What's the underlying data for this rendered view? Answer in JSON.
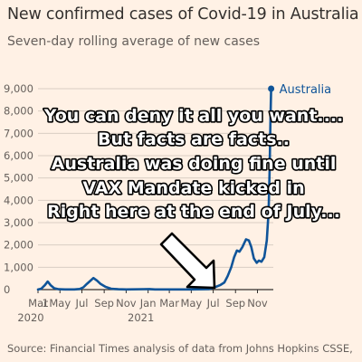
{
  "title": "New confirmed cases of Covid-19 in Australia",
  "subtitle": "Seven-day rolling average of new cases",
  "source": "Source: Financial Times analysis of data from Johns Hopkins CSSE,",
  "overlay": {
    "lines": [
      "You can deny it all you want....",
      "But facts are facts..",
      "Australia was doing fine until",
      "VAX Mandate kicked in",
      "Right here at the end of July..."
    ],
    "arrow": "arrow-pointing-down-right",
    "text_color": "#ffffff",
    "outline_color": "#000000"
  },
  "chart_data": {
    "type": "line",
    "xlim": [
      "2020-03-01",
      "2021-12-10"
    ],
    "ylim": [
      0,
      9000
    ],
    "y_ticks": [
      0,
      1000,
      2000,
      3000,
      4000,
      5000,
      6000,
      7000,
      8000,
      9000
    ],
    "y_tick_labels": [
      "0",
      "1,000",
      "2,000",
      "3,000",
      "4,000",
      "5,000",
      "6,000",
      "7,000",
      "8,000",
      "9,000"
    ],
    "x_ticks": [
      {
        "date": "2020-03-01",
        "label": "Mar",
        "year": "2020"
      },
      {
        "date": "2020-05-01",
        "label": "May"
      },
      {
        "date": "2020-07-01",
        "label": "Jul"
      },
      {
        "date": "2020-09-01",
        "label": "Sep"
      },
      {
        "date": "2020-11-01",
        "label": "Nov"
      },
      {
        "date": "2021-01-01",
        "label": "Jan",
        "year": "2021"
      },
      {
        "date": "2021-03-01",
        "label": "Mar"
      },
      {
        "date": "2021-05-01",
        "label": "May"
      },
      {
        "date": "2021-07-01",
        "label": "Jul"
      },
      {
        "date": "2021-09-01",
        "label": "Sep"
      },
      {
        "date": "2021-11-01",
        "label": "Nov"
      }
    ],
    "extra_x_label": {
      "date": "2020-04-01",
      "label": "1"
    },
    "grid": true,
    "legend_position": "top-right",
    "colors": {
      "line": "#0f5499",
      "grid": "#d9cdc3",
      "text": "#66605c"
    },
    "series": [
      {
        "name": "Australia",
        "x": [
          "2020-03-01",
          "2020-03-10",
          "2020-03-20",
          "2020-03-28",
          "2020-04-05",
          "2020-04-15",
          "2020-04-28",
          "2020-05-15",
          "2020-06-10",
          "2020-06-25",
          "2020-07-05",
          "2020-07-15",
          "2020-07-25",
          "2020-08-02",
          "2020-08-12",
          "2020-08-22",
          "2020-09-05",
          "2020-09-20",
          "2020-10-10",
          "2020-11-01",
          "2020-12-20",
          "2021-01-05",
          "2021-01-20",
          "2021-03-01",
          "2021-05-01",
          "2021-06-20",
          "2021-07-05",
          "2021-07-20",
          "2021-08-01",
          "2021-08-10",
          "2021-08-20",
          "2021-08-28",
          "2021-09-05",
          "2021-09-12",
          "2021-09-20",
          "2021-09-30",
          "2021-10-08",
          "2021-10-15",
          "2021-10-22",
          "2021-10-30",
          "2021-11-05",
          "2021-11-12",
          "2021-11-20",
          "2021-11-27",
          "2021-12-02",
          "2021-12-05",
          "2021-12-07",
          "2021-12-09"
        ],
        "values": [
          5,
          40,
          200,
          360,
          200,
          60,
          15,
          10,
          10,
          30,
          100,
          260,
          400,
          520,
          400,
          250,
          120,
          40,
          15,
          10,
          20,
          25,
          10,
          10,
          8,
          25,
          100,
          200,
          320,
          600,
          1000,
          1450,
          1750,
          1700,
          1900,
          2250,
          2200,
          1900,
          1400,
          1200,
          1300,
          1250,
          1450,
          2200,
          3500,
          5500,
          7500,
          9000
        ]
      }
    ]
  }
}
